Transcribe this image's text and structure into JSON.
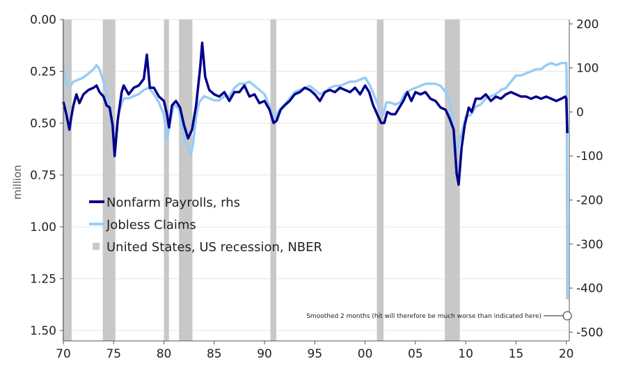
{
  "chart_data": {
    "type": "line",
    "title": "",
    "xlabel": "",
    "ylabel_left": "million",
    "ylabel_right": "",
    "x_range": [
      1970,
      2020.3
    ],
    "x_ticks": [
      1970,
      1975,
      1980,
      1985,
      1990,
      1995,
      2000,
      2005,
      2010,
      2015,
      2020
    ],
    "x_tick_labels": [
      "70",
      "75",
      "80",
      "85",
      "90",
      "95",
      "00",
      "05",
      "10",
      "15",
      "20"
    ],
    "y_left": {
      "range": [
        0.0,
        1.55
      ],
      "inverted": true,
      "ticks": [
        "0.00",
        "0.25",
        "0.50",
        "0.75",
        "1.00",
        "1.25",
        "1.50"
      ]
    },
    "y_right": {
      "range": [
        210,
        -520
      ],
      "ticks": [
        "200",
        "100",
        "0",
        "-100",
        "-200",
        "-300",
        "-400",
        "-500"
      ]
    },
    "grid": "horizontal",
    "legend_placement": "center-left",
    "colors": {
      "payrolls": "#00008b",
      "claims": "#99ccf5",
      "recession": "#c8c8c8"
    },
    "legend": [
      {
        "label": "Nonfarm Payrolls, rhs",
        "style": "line"
      },
      {
        "label": "Jobless Claims",
        "style": "line"
      },
      {
        "label": "United States, US recession, NBER",
        "style": "square"
      }
    ],
    "recessions": [
      [
        1969.92,
        1970.83
      ],
      [
        1973.92,
        1975.17
      ],
      [
        1980.0,
        1980.5
      ],
      [
        1981.5,
        1982.83
      ],
      [
        1990.58,
        1991.17
      ],
      [
        2001.17,
        2001.83
      ],
      [
        2007.92,
        2009.42
      ]
    ],
    "annotation": {
      "text": "Smoothed 2 months (hit will therefore be much worse than indicated here)",
      "x": 2020.1,
      "y_right": -463
    },
    "series": [
      {
        "name": "Nonfarm Payrolls, rhs",
        "axis": "right",
        "points": [
          [
            1970.0,
            23
          ],
          [
            1970.3,
            -5
          ],
          [
            1970.6,
            -40
          ],
          [
            1970.8,
            -10
          ],
          [
            1971.0,
            15
          ],
          [
            1971.3,
            40
          ],
          [
            1971.6,
            20
          ],
          [
            1972.0,
            40
          ],
          [
            1972.5,
            50
          ],
          [
            1973.0,
            55
          ],
          [
            1973.3,
            60
          ],
          [
            1973.6,
            45
          ],
          [
            1974.0,
            35
          ],
          [
            1974.3,
            15
          ],
          [
            1974.6,
            10
          ],
          [
            1974.9,
            -30
          ],
          [
            1975.1,
            -100
          ],
          [
            1975.4,
            -20
          ],
          [
            1975.8,
            45
          ],
          [
            1976.0,
            60
          ],
          [
            1976.5,
            40
          ],
          [
            1977.0,
            55
          ],
          [
            1977.5,
            60
          ],
          [
            1978.0,
            75
          ],
          [
            1978.3,
            130
          ],
          [
            1978.6,
            55
          ],
          [
            1979.0,
            55
          ],
          [
            1979.5,
            35
          ],
          [
            1980.0,
            25
          ],
          [
            1980.3,
            -5
          ],
          [
            1980.5,
            -35
          ],
          [
            1980.8,
            15
          ],
          [
            1981.2,
            25
          ],
          [
            1981.6,
            10
          ],
          [
            1982.0,
            -30
          ],
          [
            1982.4,
            -60
          ],
          [
            1982.8,
            -40
          ],
          [
            1983.2,
            15
          ],
          [
            1983.6,
            100
          ],
          [
            1983.8,
            157
          ],
          [
            1984.1,
            80
          ],
          [
            1984.5,
            50
          ],
          [
            1985.0,
            40
          ],
          [
            1985.5,
            35
          ],
          [
            1986.0,
            45
          ],
          [
            1986.5,
            25
          ],
          [
            1987.0,
            45
          ],
          [
            1987.5,
            45
          ],
          [
            1988.0,
            60
          ],
          [
            1988.5,
            35
          ],
          [
            1989.0,
            40
          ],
          [
            1989.5,
            20
          ],
          [
            1990.0,
            25
          ],
          [
            1990.5,
            5
          ],
          [
            1990.9,
            -25
          ],
          [
            1991.2,
            -20
          ],
          [
            1991.6,
            5
          ],
          [
            1992.0,
            15
          ],
          [
            1992.5,
            25
          ],
          [
            1993.0,
            40
          ],
          [
            1993.5,
            45
          ],
          [
            1994.0,
            55
          ],
          [
            1994.5,
            50
          ],
          [
            1995.0,
            40
          ],
          [
            1995.5,
            25
          ],
          [
            1996.0,
            45
          ],
          [
            1996.5,
            50
          ],
          [
            1997.0,
            45
          ],
          [
            1997.5,
            55
          ],
          [
            1998.0,
            50
          ],
          [
            1998.5,
            45
          ],
          [
            1999.0,
            55
          ],
          [
            1999.5,
            40
          ],
          [
            2000.0,
            60
          ],
          [
            2000.4,
            45
          ],
          [
            2000.8,
            15
          ],
          [
            2001.2,
            -5
          ],
          [
            2001.6,
            -25
          ],
          [
            2001.9,
            -25
          ],
          [
            2002.2,
            0
          ],
          [
            2002.6,
            -5
          ],
          [
            2003.0,
            -5
          ],
          [
            2003.4,
            10
          ],
          [
            2003.8,
            25
          ],
          [
            2004.2,
            45
          ],
          [
            2004.6,
            25
          ],
          [
            2005.0,
            45
          ],
          [
            2005.5,
            40
          ],
          [
            2006.0,
            45
          ],
          [
            2006.5,
            30
          ],
          [
            2007.0,
            25
          ],
          [
            2007.5,
            10
          ],
          [
            2008.0,
            5
          ],
          [
            2008.4,
            -15
          ],
          [
            2008.8,
            -40
          ],
          [
            2009.1,
            -140
          ],
          [
            2009.3,
            -165
          ],
          [
            2009.6,
            -80
          ],
          [
            2009.9,
            -30
          ],
          [
            2010.3,
            10
          ],
          [
            2010.6,
            0
          ],
          [
            2011.0,
            30
          ],
          [
            2011.5,
            30
          ],
          [
            2012.0,
            40
          ],
          [
            2012.5,
            25
          ],
          [
            2013.0,
            35
          ],
          [
            2013.5,
            30
          ],
          [
            2014.0,
            40
          ],
          [
            2014.5,
            45
          ],
          [
            2015.0,
            40
          ],
          [
            2015.5,
            35
          ],
          [
            2016.0,
            35
          ],
          [
            2016.5,
            30
          ],
          [
            2017.0,
            35
          ],
          [
            2017.5,
            30
          ],
          [
            2018.0,
            35
          ],
          [
            2018.5,
            30
          ],
          [
            2019.0,
            25
          ],
          [
            2019.5,
            30
          ],
          [
            2019.9,
            35
          ],
          [
            2020.0,
            30
          ],
          [
            2020.1,
            -48
          ]
        ]
      },
      {
        "name": "Jobless Claims",
        "axis": "left",
        "points": [
          [
            1970.0,
            0.22
          ],
          [
            1970.2,
            0.28
          ],
          [
            1970.4,
            0.32
          ],
          [
            1970.7,
            0.32
          ],
          [
            1971.0,
            0.3
          ],
          [
            1971.5,
            0.29
          ],
          [
            1972.0,
            0.28
          ],
          [
            1972.5,
            0.26
          ],
          [
            1973.0,
            0.24
          ],
          [
            1973.3,
            0.22
          ],
          [
            1973.6,
            0.24
          ],
          [
            1974.0,
            0.3
          ],
          [
            1974.3,
            0.35
          ],
          [
            1974.7,
            0.45
          ],
          [
            1975.0,
            0.58
          ],
          [
            1975.2,
            0.6
          ],
          [
            1975.5,
            0.45
          ],
          [
            1976.0,
            0.38
          ],
          [
            1976.5,
            0.38
          ],
          [
            1977.0,
            0.37
          ],
          [
            1977.5,
            0.36
          ],
          [
            1978.0,
            0.34
          ],
          [
            1978.5,
            0.33
          ],
          [
            1979.0,
            0.36
          ],
          [
            1979.5,
            0.4
          ],
          [
            1980.0,
            0.46
          ],
          [
            1980.3,
            0.58
          ],
          [
            1980.6,
            0.5
          ],
          [
            1981.0,
            0.41
          ],
          [
            1981.5,
            0.43
          ],
          [
            1981.8,
            0.52
          ],
          [
            1982.1,
            0.58
          ],
          [
            1982.4,
            0.62
          ],
          [
            1982.7,
            0.65
          ],
          [
            1982.9,
            0.6
          ],
          [
            1983.2,
            0.47
          ],
          [
            1983.5,
            0.4
          ],
          [
            1984.0,
            0.37
          ],
          [
            1984.5,
            0.38
          ],
          [
            1985.0,
            0.39
          ],
          [
            1985.5,
            0.39
          ],
          [
            1986.0,
            0.37
          ],
          [
            1986.5,
            0.37
          ],
          [
            1987.0,
            0.33
          ],
          [
            1987.5,
            0.31
          ],
          [
            1988.0,
            0.31
          ],
          [
            1988.5,
            0.3
          ],
          [
            1989.0,
            0.32
          ],
          [
            1989.5,
            0.34
          ],
          [
            1990.0,
            0.36
          ],
          [
            1990.5,
            0.42
          ],
          [
            1991.0,
            0.48
          ],
          [
            1991.3,
            0.45
          ],
          [
            1991.6,
            0.43
          ],
          [
            1992.0,
            0.41
          ],
          [
            1992.5,
            0.38
          ],
          [
            1993.0,
            0.35
          ],
          [
            1993.5,
            0.34
          ],
          [
            1994.0,
            0.33
          ],
          [
            1994.5,
            0.32
          ],
          [
            1995.0,
            0.34
          ],
          [
            1995.5,
            0.36
          ],
          [
            1996.0,
            0.35
          ],
          [
            1996.5,
            0.33
          ],
          [
            1997.0,
            0.32
          ],
          [
            1997.5,
            0.32
          ],
          [
            1998.0,
            0.31
          ],
          [
            1998.5,
            0.3
          ],
          [
            1999.0,
            0.3
          ],
          [
            1999.5,
            0.29
          ],
          [
            2000.0,
            0.28
          ],
          [
            2000.5,
            0.32
          ],
          [
            2001.0,
            0.38
          ],
          [
            2001.5,
            0.44
          ],
          [
            2001.8,
            0.46
          ],
          [
            2002.1,
            0.4
          ],
          [
            2002.5,
            0.4
          ],
          [
            2003.0,
            0.41
          ],
          [
            2003.5,
            0.4
          ],
          [
            2003.9,
            0.36
          ],
          [
            2004.5,
            0.34
          ],
          [
            2005.0,
            0.33
          ],
          [
            2005.5,
            0.32
          ],
          [
            2006.0,
            0.31
          ],
          [
            2006.5,
            0.31
          ],
          [
            2007.0,
            0.31
          ],
          [
            2007.5,
            0.32
          ],
          [
            2008.0,
            0.35
          ],
          [
            2008.4,
            0.4
          ],
          [
            2008.8,
            0.52
          ],
          [
            2009.1,
            0.63
          ],
          [
            2009.3,
            0.6
          ],
          [
            2009.6,
            0.55
          ],
          [
            2010.0,
            0.47
          ],
          [
            2010.5,
            0.46
          ],
          [
            2011.0,
            0.42
          ],
          [
            2011.5,
            0.41
          ],
          [
            2012.0,
            0.38
          ],
          [
            2012.5,
            0.37
          ],
          [
            2013.0,
            0.36
          ],
          [
            2013.5,
            0.34
          ],
          [
            2014.0,
            0.33
          ],
          [
            2014.5,
            0.3
          ],
          [
            2015.0,
            0.27
          ],
          [
            2015.5,
            0.27
          ],
          [
            2016.0,
            0.26
          ],
          [
            2016.5,
            0.25
          ],
          [
            2017.0,
            0.24
          ],
          [
            2017.5,
            0.24
          ],
          [
            2018.0,
            0.22
          ],
          [
            2018.5,
            0.21
          ],
          [
            2019.0,
            0.22
          ],
          [
            2019.5,
            0.21
          ],
          [
            2019.9,
            0.21
          ],
          [
            2020.0,
            0.21
          ],
          [
            2020.05,
            0.33
          ],
          [
            2020.1,
            1.35
          ]
        ]
      }
    ]
  }
}
